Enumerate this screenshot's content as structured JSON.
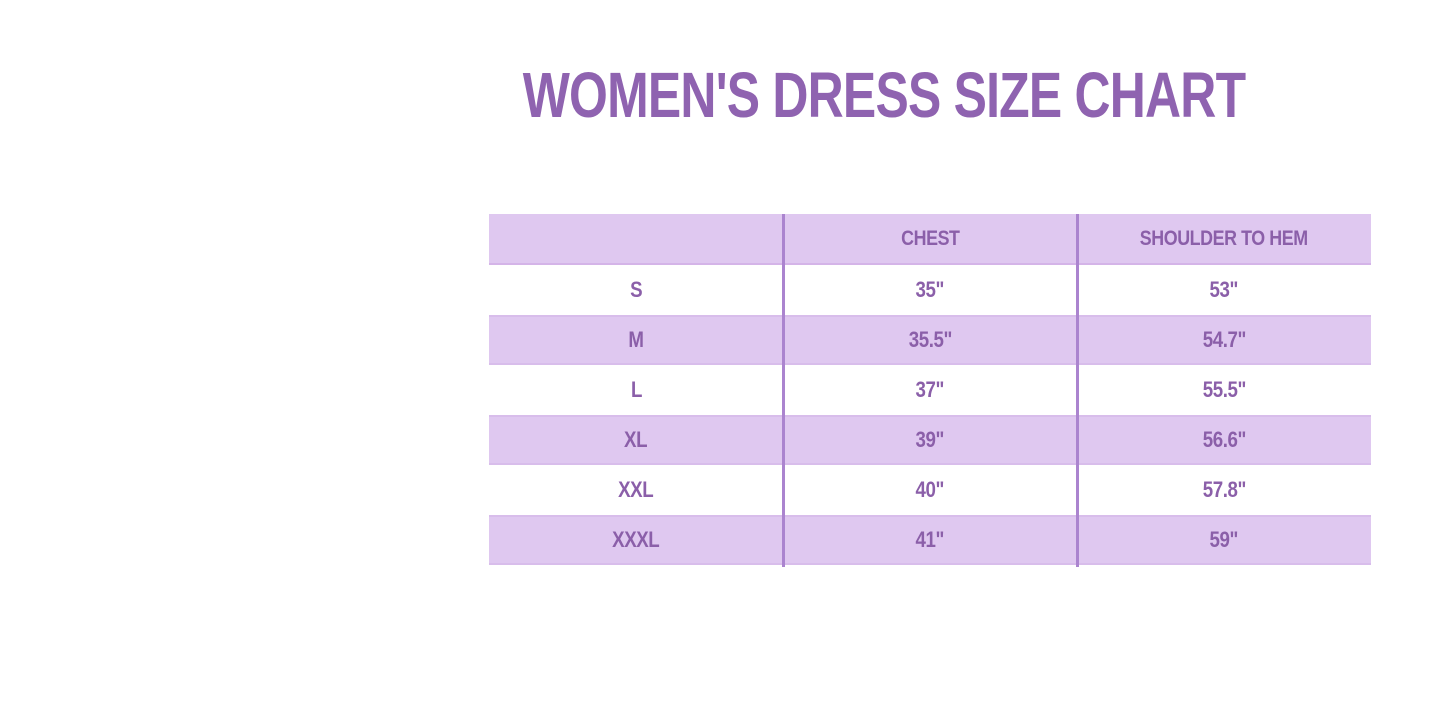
{
  "page": {
    "title": "WOMEN'S DRESS SIZE CHART",
    "background": "#ffffff"
  },
  "colors": {
    "title_text": "#8f63b0",
    "table_text": "#8b5fa9",
    "stripe_bg": "#dfc8f0",
    "stripe_edge": "#d8bdeb",
    "column_divider": "#ab84cf"
  },
  "chart_data": {
    "type": "table",
    "title": "WOMEN'S DRESS SIZE CHART",
    "columns": [
      "",
      "CHEST",
      "SHOULDER TO HEM"
    ],
    "rows": [
      {
        "size": "S",
        "chest": "35\"",
        "shoulder_to_hem": "53\""
      },
      {
        "size": "M",
        "chest": "35.5\"",
        "shoulder_to_hem": "54.7\""
      },
      {
        "size": "L",
        "chest": "37\"",
        "shoulder_to_hem": "55.5\""
      },
      {
        "size": "XL",
        "chest": "39\"",
        "shoulder_to_hem": "56.6\""
      },
      {
        "size": "XXL",
        "chest": "40\"",
        "shoulder_to_hem": "57.8\""
      },
      {
        "size": "XXXL",
        "chest": "41\"",
        "shoulder_to_hem": "59\""
      }
    ],
    "layout": {
      "stripe_pattern": "header and even rows lavender, odd rows white",
      "column_alignment": "center"
    }
  }
}
